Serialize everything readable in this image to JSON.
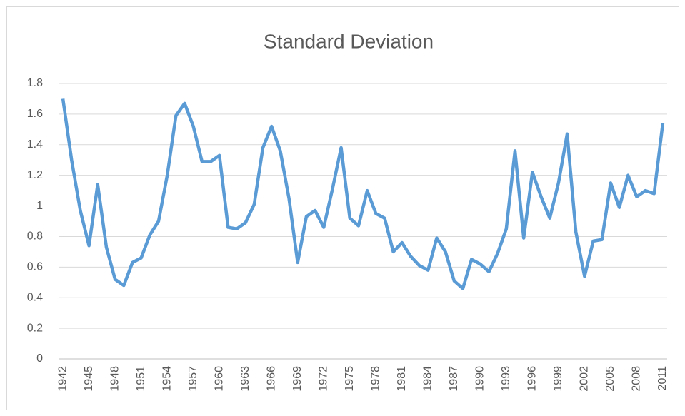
{
  "chart_data": {
    "type": "line",
    "title": "Standard Deviation",
    "x": [
      1942,
      1943,
      1944,
      1945,
      1946,
      1947,
      1948,
      1949,
      1950,
      1951,
      1952,
      1953,
      1954,
      1955,
      1956,
      1957,
      1958,
      1959,
      1960,
      1961,
      1962,
      1963,
      1964,
      1965,
      1966,
      1967,
      1968,
      1969,
      1970,
      1971,
      1972,
      1973,
      1974,
      1975,
      1976,
      1977,
      1978,
      1979,
      1980,
      1981,
      1982,
      1983,
      1984,
      1985,
      1986,
      1987,
      1988,
      1989,
      1990,
      1991,
      1992,
      1993,
      1994,
      1995,
      1996,
      1997,
      1998,
      1999,
      2000,
      2001,
      2002,
      2003,
      2004,
      2005,
      2006,
      2007,
      2008,
      2009,
      2010,
      2011
    ],
    "values": [
      1.7,
      1.3,
      0.97,
      0.74,
      1.14,
      0.73,
      0.52,
      0.48,
      0.63,
      0.66,
      0.81,
      0.9,
      1.2,
      1.59,
      1.67,
      1.52,
      1.29,
      1.29,
      1.33,
      0.86,
      0.85,
      0.89,
      1.01,
      1.38,
      1.52,
      1.36,
      1.05,
      0.63,
      0.93,
      0.97,
      0.86,
      1.11,
      1.38,
      0.92,
      0.87,
      1.1,
      0.95,
      0.92,
      0.7,
      0.76,
      0.67,
      0.61,
      0.58,
      0.79,
      0.7,
      0.51,
      0.46,
      0.65,
      0.62,
      0.57,
      0.69,
      0.85,
      1.36,
      0.79,
      1.22,
      1.06,
      0.92,
      1.15,
      1.47,
      0.83,
      0.54,
      0.77,
      0.78,
      1.15,
      0.99,
      1.2,
      1.06,
      1.1,
      1.08,
      1.54
    ],
    "color": "#5b9bd5",
    "xlim": [
      1941.5,
      2011.5
    ],
    "xticks": [
      1942,
      1945,
      1948,
      1951,
      1954,
      1957,
      1960,
      1963,
      1966,
      1969,
      1972,
      1975,
      1978,
      1981,
      1984,
      1987,
      1990,
      1993,
      1996,
      1999,
      2002,
      2005,
      2008,
      2011
    ],
    "ylim": [
      0,
      1.8
    ],
    "yticks": [
      0,
      0.2,
      0.4,
      0.6,
      0.8,
      1,
      1.2,
      1.4,
      1.6,
      1.8
    ],
    "grid": true
  }
}
